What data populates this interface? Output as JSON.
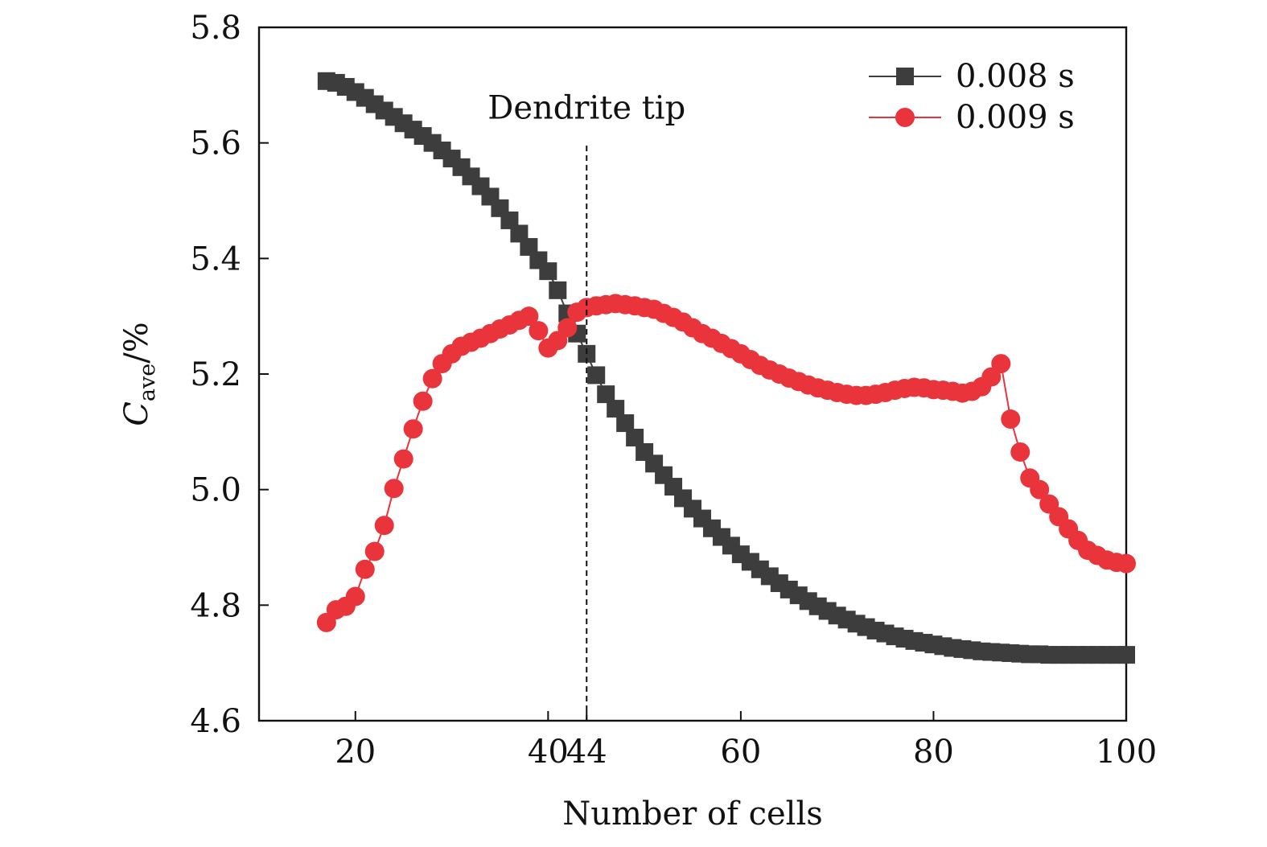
{
  "chart_data": {
    "type": "scatter",
    "xlabel": "Number of cells",
    "ylabel_main": "C",
    "ylabel_sub": "ave",
    "ylabel_unit": "/%",
    "xlim": [
      10,
      100
    ],
    "ylim": [
      4.6,
      5.8
    ],
    "xticks": [
      20,
      40,
      44,
      60,
      80,
      100
    ],
    "yticks": [
      4.6,
      4.8,
      5.0,
      5.2,
      5.4,
      5.6,
      5.8
    ],
    "grid": false,
    "legend_position": "top-right",
    "annotation": {
      "text": "Dendrite tip",
      "x": 44,
      "y_from": 4.6,
      "y_to": 5.6
    },
    "series": [
      {
        "name": "0.008 s",
        "marker": "square",
        "color": "#3d3d3d",
        "x": [
          17,
          18,
          19,
          20,
          21,
          22,
          23,
          24,
          25,
          26,
          27,
          28,
          29,
          30,
          31,
          32,
          33,
          34,
          35,
          36,
          37,
          38,
          39,
          40,
          41,
          42,
          43,
          44,
          45,
          46,
          47,
          48,
          49,
          50,
          51,
          52,
          53,
          54,
          55,
          56,
          57,
          58,
          59,
          60,
          61,
          62,
          63,
          64,
          65,
          66,
          67,
          68,
          69,
          70,
          71,
          72,
          73,
          74,
          75,
          76,
          77,
          78,
          79,
          80,
          81,
          82,
          83,
          84,
          85,
          86,
          87,
          88,
          89,
          90,
          91,
          92,
          93,
          94,
          95,
          96,
          97,
          98,
          99,
          100
        ],
        "values": [
          5.707,
          5.704,
          5.697,
          5.688,
          5.678,
          5.667,
          5.656,
          5.645,
          5.634,
          5.623,
          5.612,
          5.6,
          5.587,
          5.573,
          5.558,
          5.542,
          5.525,
          5.507,
          5.487,
          5.466,
          5.443,
          5.42,
          5.397,
          5.378,
          5.345,
          5.305,
          5.27,
          5.235,
          5.198,
          5.165,
          5.14,
          5.115,
          5.09,
          5.065,
          5.045,
          5.025,
          5.005,
          4.985,
          4.967,
          4.95,
          4.933,
          4.918,
          4.903,
          4.888,
          4.875,
          4.862,
          4.85,
          4.838,
          4.827,
          4.817,
          4.807,
          4.798,
          4.79,
          4.782,
          4.775,
          4.768,
          4.762,
          4.756,
          4.751,
          4.746,
          4.742,
          4.738,
          4.735,
          4.732,
          4.729,
          4.726,
          4.724,
          4.722,
          4.72,
          4.719,
          4.718,
          4.717,
          4.716,
          4.715,
          4.715,
          4.714,
          4.714,
          4.714,
          4.714,
          4.714,
          4.714,
          4.714,
          4.714,
          4.714
        ]
      },
      {
        "name": "0.009 s",
        "marker": "circle",
        "color": "#e8343a",
        "x": [
          17,
          18,
          19,
          20,
          21,
          22,
          23,
          24,
          25,
          26,
          27,
          28,
          29,
          30,
          31,
          32,
          33,
          34,
          35,
          36,
          37,
          38,
          39,
          40,
          41,
          42,
          43,
          44,
          45,
          46,
          47,
          48,
          49,
          50,
          51,
          52,
          53,
          54,
          55,
          56,
          57,
          58,
          59,
          60,
          61,
          62,
          63,
          64,
          65,
          66,
          67,
          68,
          69,
          70,
          71,
          72,
          73,
          74,
          75,
          76,
          77,
          78,
          79,
          80,
          81,
          82,
          83,
          84,
          85,
          86,
          87,
          88,
          89,
          90,
          91,
          92,
          93,
          94,
          95,
          96,
          97,
          98,
          99,
          100
        ],
        "values": [
          4.77,
          4.792,
          4.798,
          4.815,
          4.862,
          4.893,
          4.938,
          5.002,
          5.053,
          5.105,
          5.153,
          5.192,
          5.218,
          5.235,
          5.248,
          5.255,
          5.262,
          5.27,
          5.278,
          5.285,
          5.293,
          5.3,
          5.275,
          5.245,
          5.258,
          5.28,
          5.307,
          5.315,
          5.318,
          5.32,
          5.322,
          5.32,
          5.318,
          5.315,
          5.312,
          5.305,
          5.298,
          5.29,
          5.28,
          5.27,
          5.262,
          5.253,
          5.244,
          5.235,
          5.225,
          5.215,
          5.207,
          5.2,
          5.193,
          5.187,
          5.181,
          5.176,
          5.172,
          5.168,
          5.165,
          5.163,
          5.163,
          5.165,
          5.168,
          5.172,
          5.175,
          5.177,
          5.176,
          5.173,
          5.172,
          5.17,
          5.167,
          5.17,
          5.178,
          5.195,
          5.218,
          5.122,
          5.065,
          5.02,
          5.0,
          4.975,
          4.953,
          4.932,
          4.912,
          4.895,
          4.886,
          4.878,
          4.874,
          4.872
        ]
      }
    ]
  }
}
